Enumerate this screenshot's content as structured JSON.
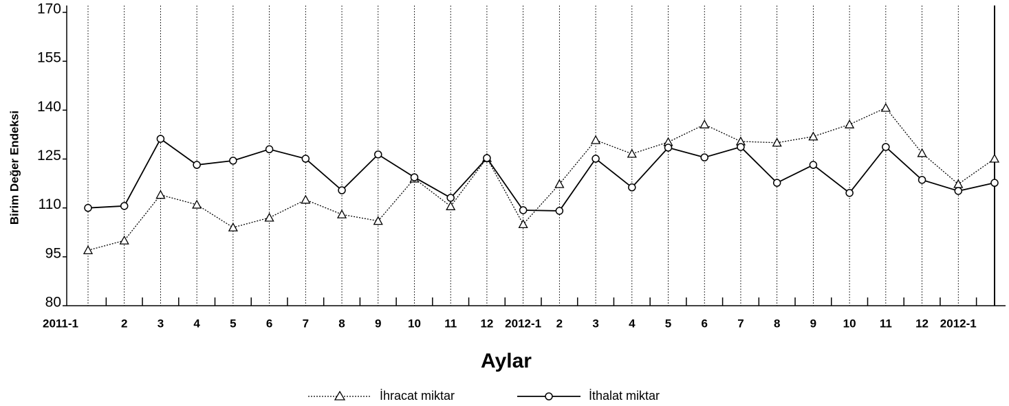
{
  "chart_data": {
    "type": "line",
    "x_label": "Aylar",
    "y_label": "Birim Değer Endeksi",
    "categories": [
      "2011-1",
      "2",
      "3",
      "4",
      "5",
      "6",
      "7",
      "8",
      "9",
      "10",
      "11",
      "12",
      "2012-1",
      "2",
      "3",
      "4",
      "5",
      "6",
      "7",
      "8",
      "9",
      "10",
      "11",
      "12",
      "2012-1",
      null
    ],
    "series": [
      {
        "name": "İhracat miktar",
        "color": "#000000",
        "line_style": "dotted",
        "marker": "triangle",
        "values": [
          97,
          100,
          114,
          111,
          104,
          107,
          112.5,
          108,
          106,
          119,
          110.5,
          125.3,
          105,
          117.3,
          130.8,
          126.6,
          130.2,
          135.6,
          130.4,
          130,
          131.9,
          135.6,
          140.7,
          126.8,
          117.3,
          125.1
        ]
      },
      {
        "name": "İthalat miktar",
        "color": "#000000",
        "line_style": "solid",
        "marker": "circle",
        "values": [
          110,
          110.6,
          131.2,
          123.2,
          124.5,
          128,
          125.1,
          115.4,
          126.4,
          119.4,
          113.1,
          125.3,
          109.3,
          109.1,
          125.1,
          116.3,
          128.5,
          125.5,
          128.7,
          117.7,
          123.2,
          114.6,
          128.7,
          118.6,
          115.2,
          117.7
        ]
      }
    ],
    "ylim": [
      80,
      170
    ],
    "yticks": [
      80,
      95,
      110,
      125,
      140,
      155,
      170
    ],
    "grid": true
  }
}
